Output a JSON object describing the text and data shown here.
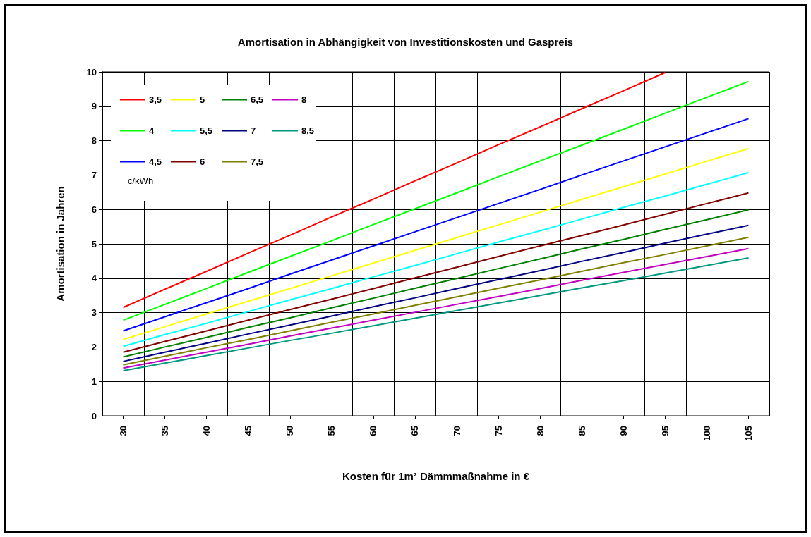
{
  "chart_data": {
    "type": "line",
    "title": "Amortisation in Abhängigkeit von Investitionskosten und Gaspreis",
    "xlabel": "Kosten für 1m² Dämmmaßnahme in €",
    "ylabel": "Amortisation in Jahren",
    "legend_title": "c/kWh",
    "categories": [
      "30",
      "35",
      "40",
      "45",
      "50",
      "55",
      "60",
      "65",
      "70",
      "75",
      "80",
      "85",
      "90",
      "95",
      "100",
      "105"
    ],
    "ylim": [
      0,
      10
    ],
    "yticks": [
      0,
      1,
      2,
      3,
      4,
      5,
      6,
      7,
      8,
      9,
      10
    ],
    "grid": true,
    "legend": "top left",
    "marker": "none",
    "line_style": "solid",
    "series": [
      {
        "name": "3,5",
        "color": "#ff0000",
        "values": [
          3.15,
          3.68,
          4.2,
          4.73,
          5.25,
          5.78,
          6.3,
          6.83,
          7.35,
          7.88,
          8.4,
          8.93,
          9.45,
          9.98,
          null,
          null
        ]
      },
      {
        "name": "4",
        "color": "#00ff00",
        "values": [
          2.78,
          3.24,
          3.7,
          4.17,
          4.63,
          5.09,
          5.56,
          6.02,
          6.48,
          6.95,
          7.41,
          7.87,
          8.33,
          8.8,
          9.26,
          9.72
        ]
      },
      {
        "name": "4,5",
        "color": "#0000ff",
        "values": [
          2.47,
          2.88,
          3.29,
          3.7,
          4.12,
          4.53,
          4.94,
          5.35,
          5.76,
          6.17,
          6.58,
          7.0,
          7.41,
          7.82,
          8.23,
          8.64
        ]
      },
      {
        "name": "5",
        "color": "#ffff00",
        "values": [
          2.22,
          2.59,
          2.96,
          3.33,
          3.7,
          4.07,
          4.44,
          4.81,
          5.18,
          5.55,
          5.92,
          6.29,
          6.66,
          7.03,
          7.4,
          7.77
        ]
      },
      {
        "name": "5,5",
        "color": "#00ffff",
        "values": [
          2.02,
          2.36,
          2.69,
          3.03,
          3.37,
          3.7,
          4.04,
          4.37,
          4.71,
          5.05,
          5.38,
          5.72,
          6.06,
          6.39,
          6.73,
          7.07
        ]
      },
      {
        "name": "6",
        "color": "#800000",
        "values": [
          1.85,
          2.16,
          2.47,
          2.78,
          3.09,
          3.39,
          3.7,
          4.01,
          4.32,
          4.63,
          4.94,
          5.24,
          5.55,
          5.86,
          6.17,
          6.48
        ]
      },
      {
        "name": "6,5",
        "color": "#008000",
        "values": [
          1.71,
          2.0,
          2.28,
          2.57,
          2.85,
          3.14,
          3.42,
          3.71,
          3.99,
          4.28,
          4.56,
          4.85,
          5.13,
          5.42,
          5.7,
          5.99
        ]
      },
      {
        "name": "7",
        "color": "#000080",
        "values": [
          1.58,
          1.85,
          2.11,
          2.38,
          2.64,
          2.9,
          3.17,
          3.43,
          3.7,
          3.96,
          4.22,
          4.49,
          4.75,
          5.02,
          5.28,
          5.54
        ]
      },
      {
        "name": "7,5",
        "color": "#808000",
        "values": [
          1.48,
          1.73,
          1.98,
          2.22,
          2.47,
          2.72,
          2.96,
          3.21,
          3.46,
          3.71,
          3.95,
          4.2,
          4.45,
          4.69,
          4.94,
          5.19
        ]
      },
      {
        "name": "8",
        "color": "#c000c0",
        "values": [
          1.39,
          1.62,
          1.85,
          2.08,
          2.32,
          2.55,
          2.78,
          3.01,
          3.24,
          3.47,
          3.7,
          3.94,
          4.17,
          4.4,
          4.63,
          4.86
        ]
      },
      {
        "name": "8,5",
        "color": "#009980",
        "values": [
          1.31,
          1.53,
          1.75,
          1.97,
          2.19,
          2.4,
          2.62,
          2.84,
          3.06,
          3.28,
          3.5,
          3.72,
          3.93,
          4.15,
          4.37,
          4.59
        ]
      }
    ]
  }
}
